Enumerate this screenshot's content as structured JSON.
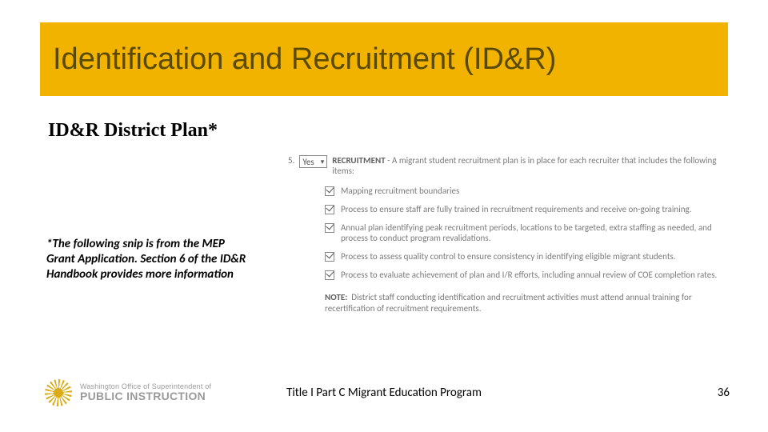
{
  "colors": {
    "accent": "#f2b200",
    "title_text": "#5a4a00",
    "body_text": "#000000",
    "snip_text": "#7a7a7a",
    "snip_bold": "#606060",
    "logo_gray": "#9a9a9a",
    "background": "#ffffff"
  },
  "typography": {
    "title_fontsize": 38,
    "subtitle_fontsize": 24,
    "footnote_fontsize": 15,
    "snip_fontsize": 11,
    "footer_fontsize": 15
  },
  "title": "Identification and Recruitment (ID&R)",
  "subtitle": "ID&R District Plan*",
  "footnote": "*The following snip is from the MEP Grant Application. Section 6 of the ID&R Handbook provides more information",
  "snip": {
    "number": "5.",
    "select_value": "Yes",
    "lead_bold": "RECRUITMENT",
    "lead_rest": " - A migrant student recruitment plan is in place for each recruiter that includes the following items:",
    "items": [
      "Mapping recruitment boundaries",
      "Process to ensure staff are fully trained in recruitment requirements and receive on-going training.",
      "Annual plan identifying peak recruitment periods, locations to be targeted, extra staffing as needed, and process to conduct program revalidations.",
      "Process to assess quality control to ensure consistency in identifying eligible migrant students.",
      "Process to evaluate achievement of plan and I/R efforts, including annual review of COE completion rates."
    ],
    "note_label": "NOTE:",
    "note_text": "District staff conducting identification and recruitment activities must attend annual training for recertification of recruitment requirements."
  },
  "logo": {
    "line1": "Washington Office of Superintendent of",
    "line2": "PUBLIC INSTRUCTION"
  },
  "footer": {
    "center": "Title I Part C Migrant Education Program",
    "page": "36"
  }
}
